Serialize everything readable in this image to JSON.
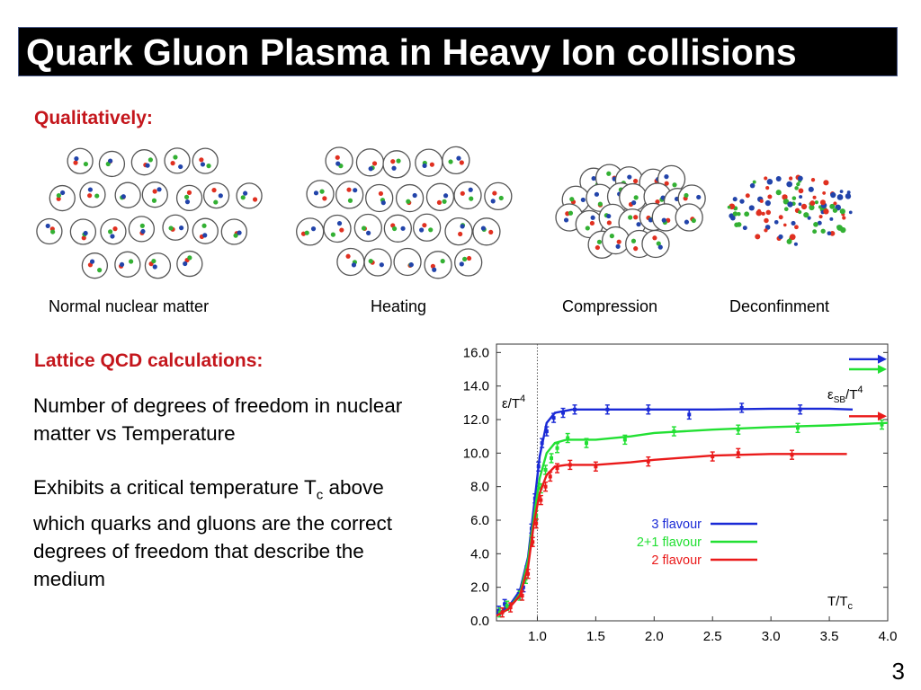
{
  "slide": {
    "title": "Quark Gluon Plasma in Heavy Ion collisions",
    "qualitatively": "Qualitatively:",
    "captions": [
      "Normal nuclear matter",
      "Heating",
      "Compression",
      "Deconfinment"
    ],
    "lattice_heading": "Lattice QCD calculations:",
    "paragraph1": "Number of degrees of freedom in nuclear matter vs Temperature",
    "paragraph2_pre": "Exhibits a critical temperature T",
    "paragraph2_sub": "c",
    "paragraph2_post": "above which quarks and gluons are the correct degrees of freedom that describe the medium",
    "slide_number": "3"
  },
  "colors": {
    "accent_red": "#c4161c",
    "quark_red": "#e03020",
    "quark_green": "#33b033",
    "quark_blue": "#2244aa"
  },
  "icons": [
    "nucleon-circle-icon",
    "quark-dot-icon"
  ],
  "chart_data": {
    "type": "line",
    "ylabel_main": "ε/T",
    "ylabel_sup": "4",
    "sb_label_main": "ε",
    "sb_label_sub": "SB",
    "sb_label_post": "/T",
    "sb_label_sup": "4",
    "xlabel_main": "T/T",
    "xlabel_sub": "c",
    "xlim": [
      0.65,
      4.0
    ],
    "ylim": [
      0,
      16.5
    ],
    "xticks": [
      "1.0",
      "1.5",
      "2.0",
      "2.5",
      "3.0",
      "3.5",
      "4.0"
    ],
    "xtick_values": [
      1.0,
      1.5,
      2.0,
      2.5,
      3.0,
      3.5,
      4.0
    ],
    "yticks": [
      "0.0",
      "2.0",
      "4.0",
      "6.0",
      "8.0",
      "10.0",
      "12.0",
      "14.0",
      "16.0"
    ],
    "ytick_values": [
      0,
      2,
      4,
      6,
      8,
      10,
      12,
      14,
      16
    ],
    "tc_line": 1.0,
    "series": [
      {
        "name": "3 flavour",
        "color": "#1a2ad6",
        "sb_limit": 15.6,
        "curve": [
          [
            0.65,
            0.4
          ],
          [
            0.75,
            0.8
          ],
          [
            0.85,
            1.8
          ],
          [
            0.92,
            3.8
          ],
          [
            0.97,
            6.8
          ],
          [
            1.02,
            9.8
          ],
          [
            1.08,
            11.8
          ],
          [
            1.15,
            12.4
          ],
          [
            1.3,
            12.6
          ],
          [
            1.6,
            12.6
          ],
          [
            2.0,
            12.6
          ],
          [
            2.5,
            12.6
          ],
          [
            3.0,
            12.65
          ],
          [
            3.5,
            12.65
          ],
          [
            3.7,
            12.6
          ]
        ],
        "points": [
          [
            0.67,
            0.6
          ],
          [
            0.72,
            1.0
          ],
          [
            0.84,
            1.6
          ],
          [
            0.88,
            2.0
          ],
          [
            0.91,
            3.0
          ],
          [
            0.95,
            5.5
          ],
          [
            0.98,
            7.3
          ],
          [
            1.01,
            9.2
          ],
          [
            1.04,
            10.6
          ],
          [
            1.08,
            11.3
          ],
          [
            1.14,
            12.1
          ],
          [
            1.22,
            12.4
          ],
          [
            1.32,
            12.6
          ],
          [
            1.6,
            12.6
          ],
          [
            1.95,
            12.6
          ],
          [
            2.3,
            12.3
          ],
          [
            2.75,
            12.7
          ],
          [
            3.25,
            12.6
          ]
        ]
      },
      {
        "name": "2+1 flavour",
        "color": "#22e033",
        "sb_limit": 15.0,
        "curve": [
          [
            0.65,
            0.3
          ],
          [
            0.75,
            0.7
          ],
          [
            0.85,
            1.6
          ],
          [
            0.92,
            3.6
          ],
          [
            0.97,
            6.2
          ],
          [
            1.02,
            8.5
          ],
          [
            1.08,
            10.0
          ],
          [
            1.15,
            10.6
          ],
          [
            1.25,
            10.8
          ],
          [
            1.5,
            10.8
          ],
          [
            1.8,
            11.0
          ],
          [
            2.0,
            11.2
          ],
          [
            2.5,
            11.4
          ],
          [
            3.0,
            11.55
          ],
          [
            3.5,
            11.65
          ],
          [
            4.0,
            11.8
          ]
        ],
        "points": [
          [
            0.68,
            0.5
          ],
          [
            0.74,
            0.9
          ],
          [
            0.85,
            1.5
          ],
          [
            0.9,
            2.5
          ],
          [
            0.95,
            4.8
          ],
          [
            0.99,
            6.3
          ],
          [
            1.03,
            7.9
          ],
          [
            1.07,
            9.0
          ],
          [
            1.12,
            9.7
          ],
          [
            1.17,
            10.3
          ],
          [
            1.26,
            10.9
          ],
          [
            1.42,
            10.6
          ],
          [
            1.75,
            10.8
          ],
          [
            2.17,
            11.3
          ],
          [
            2.72,
            11.4
          ],
          [
            3.23,
            11.5
          ],
          [
            3.95,
            11.7
          ]
        ]
      },
      {
        "name": "2 flavour",
        "color": "#ea1a1a",
        "sb_limit": 12.2,
        "curve": [
          [
            0.65,
            0.3
          ],
          [
            0.75,
            0.7
          ],
          [
            0.85,
            1.5
          ],
          [
            0.92,
            3.2
          ],
          [
            0.97,
            5.8
          ],
          [
            1.02,
            7.6
          ],
          [
            1.08,
            8.7
          ],
          [
            1.15,
            9.2
          ],
          [
            1.25,
            9.3
          ],
          [
            1.5,
            9.3
          ],
          [
            1.8,
            9.45
          ],
          [
            2.0,
            9.6
          ],
          [
            2.5,
            9.85
          ],
          [
            3.0,
            9.95
          ],
          [
            3.5,
            9.95
          ],
          [
            3.65,
            9.95
          ]
        ],
        "points": [
          [
            0.7,
            0.5
          ],
          [
            0.77,
            0.8
          ],
          [
            0.87,
            1.5
          ],
          [
            0.92,
            2.8
          ],
          [
            0.96,
            4.7
          ],
          [
            0.99,
            5.8
          ],
          [
            1.03,
            7.2
          ],
          [
            1.07,
            8.0
          ],
          [
            1.11,
            8.6
          ],
          [
            1.17,
            9.1
          ],
          [
            1.28,
            9.3
          ],
          [
            1.5,
            9.2
          ],
          [
            1.95,
            9.5
          ],
          [
            2.5,
            9.8
          ],
          [
            2.72,
            10.0
          ],
          [
            3.18,
            9.9
          ]
        ]
      }
    ]
  }
}
